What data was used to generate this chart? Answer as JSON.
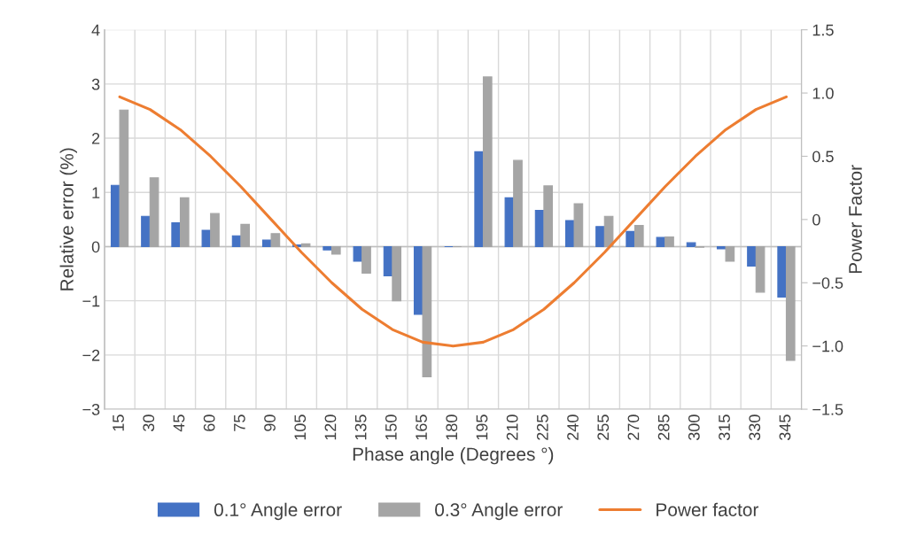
{
  "chart_data": {
    "type": "bar",
    "xlabel": "Phase angle (Degrees °)",
    "ylabel": "Relative error (%)",
    "y2label": "Power Factor",
    "categories": [
      "15",
      "30",
      "45",
      "60",
      "75",
      "90",
      "105",
      "120",
      "135",
      "150",
      "165",
      "180",
      "195",
      "210",
      "225",
      "240",
      "255",
      "270",
      "285",
      "300",
      "315",
      "330",
      "345"
    ],
    "series": [
      {
        "name": "0.1° Angle error",
        "color": "#4472c4",
        "values": [
          1.13,
          0.56,
          0.44,
          0.3,
          0.2,
          0.12,
          0.03,
          -0.06,
          -0.27,
          -0.54,
          -1.25,
          0,
          1.75,
          0.9,
          0.67,
          0.48,
          0.37,
          0.28,
          0.17,
          0.07,
          -0.04,
          -0.36,
          -0.93
        ]
      },
      {
        "name": "0.3° Angle error",
        "color": "#a5a5a5",
        "values": [
          2.52,
          1.27,
          0.9,
          0.61,
          0.41,
          0.24,
          0.05,
          -0.14,
          -0.49,
          -1.0,
          -2.4,
          0,
          3.13,
          1.59,
          1.12,
          0.79,
          0.56,
          0.39,
          0.18,
          -0.01,
          -0.27,
          -0.84,
          -2.1
        ]
      },
      {
        "name": "Power factor",
        "color": "#ed7d31",
        "type": "line",
        "axis": "y2",
        "values": [
          0.97,
          0.87,
          0.71,
          0.5,
          0.26,
          0,
          -0.26,
          -0.5,
          -0.71,
          -0.87,
          -0.97,
          -1.0,
          -0.97,
          -0.87,
          -0.71,
          -0.5,
          -0.26,
          0,
          0.26,
          0.5,
          0.71,
          0.87,
          0.97
        ]
      }
    ],
    "ylim": [
      -3,
      4
    ],
    "yticks": [
      {
        "value": -3,
        "label": "−3"
      },
      {
        "value": -2,
        "label": "−2"
      },
      {
        "value": -1,
        "label": "−1"
      },
      0,
      1,
      2,
      3,
      4
    ],
    "y2lim": [
      -1.5,
      1.5
    ],
    "y2ticks": [
      {
        "value": -1.5,
        "label": "−1.5"
      },
      {
        "value": -1.0,
        "label": "−1.0"
      },
      {
        "value": -0.5,
        "label": "−0.5"
      },
      0,
      0.5,
      {
        "value": 1.0,
        "label": "1.0"
      },
      1.5
    ],
    "grid": true,
    "legend": "bottom"
  }
}
